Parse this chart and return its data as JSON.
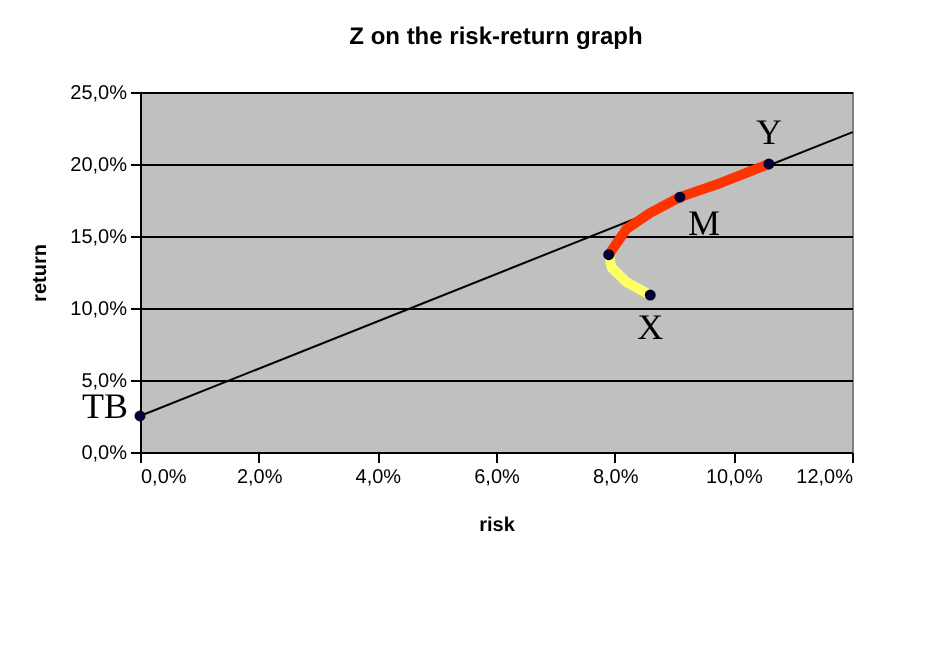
{
  "chart_data": {
    "type": "line",
    "title": "Z on the risk-return graph",
    "xlabel": "risk",
    "ylabel": "return",
    "xlim": [
      0,
      12
    ],
    "ylim": [
      0,
      25
    ],
    "xticks": [
      {
        "value": 0,
        "label": "0,0%"
      },
      {
        "value": 2,
        "label": "2,0%"
      },
      {
        "value": 4,
        "label": "4,0%"
      },
      {
        "value": 6,
        "label": "6,0%"
      },
      {
        "value": 8,
        "label": "8,0%"
      },
      {
        "value": 10,
        "label": "10,0%"
      },
      {
        "value": 12,
        "label": "12,0%"
      }
    ],
    "yticks": [
      {
        "value": 0,
        "label": "0,0%"
      },
      {
        "value": 5,
        "label": "5,0%"
      },
      {
        "value": 10,
        "label": "10,0%"
      },
      {
        "value": 15,
        "label": "15,0%"
      },
      {
        "value": 20,
        "label": "20,0%"
      },
      {
        "value": 25,
        "label": "25,0%"
      }
    ],
    "grid": "y",
    "series": [
      {
        "color": "#000000",
        "x": [
          0,
          12
        ],
        "values": [
          2.5,
          22.2
        ]
      },
      {
        "color": "#ffff66",
        "x": [
          8.6,
          8.2,
          7.95,
          7.9
        ],
        "values": [
          10.9,
          11.8,
          12.8,
          13.7
        ]
      },
      {
        "color": "#ff3300",
        "x": [
          7.9,
          8.2,
          8.6,
          9.1,
          9.8,
          10.6
        ],
        "values": [
          13.7,
          15.5,
          16.6,
          17.7,
          18.7,
          20.0
        ]
      },
      {
        "type": "scatter",
        "color": "#000033",
        "x": [
          0,
          7.9,
          9.1,
          10.6,
          8.6
        ],
        "values": [
          2.5,
          13.7,
          17.7,
          20.0,
          10.9
        ]
      }
    ],
    "annotations": [
      {
        "text": "TB",
        "x": 0,
        "y": 2.5
      },
      {
        "text": "M",
        "x": 9.1,
        "y": 17.7
      },
      {
        "text": "Y",
        "x": 10.6,
        "y": 20.0
      },
      {
        "text": "X",
        "x": 8.6,
        "y": 10.9
      }
    ]
  }
}
